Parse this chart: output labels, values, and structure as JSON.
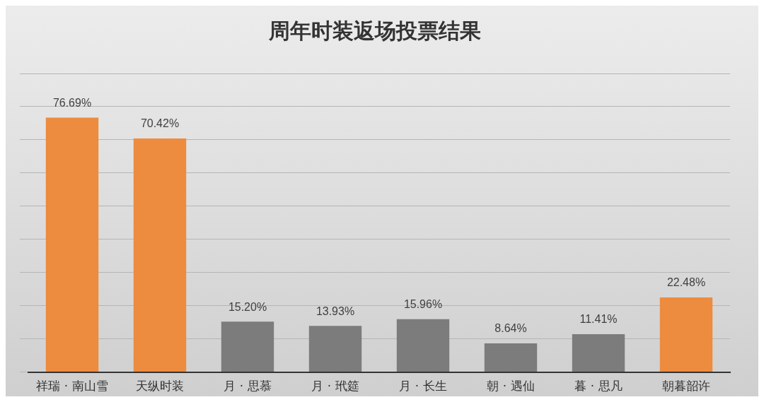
{
  "chart_data": {
    "type": "bar",
    "title": "周年时装返场投票结果",
    "categories": [
      "祥瑞 · 南山雪",
      "天纵时装",
      "月 · 思慕",
      "月 · 玳筵",
      "月 · 长生",
      "朝 · 遇仙",
      "暮 · 思凡",
      "朝暮韶许"
    ],
    "values": [
      76.69,
      70.42,
      15.2,
      13.93,
      15.96,
      8.64,
      11.41,
      22.48
    ],
    "value_labels": [
      "76.69%",
      "70.42%",
      "15.20%",
      "13.93%",
      "15.96%",
      "8.64%",
      "11.41%",
      "22.48%"
    ],
    "colors": [
      "#ed8b3e",
      "#ed8b3e",
      "#7c7c7c",
      "#7c7c7c",
      "#7c7c7c",
      "#7c7c7c",
      "#7c7c7c",
      "#ed8b3e"
    ],
    "ylim": [
      0,
      90
    ],
    "yticks": [
      {
        "value": 0,
        "label": null
      },
      {
        "value": 10,
        "label": null
      },
      {
        "value": 20,
        "label": null
      },
      {
        "value": 30,
        "label": null
      },
      {
        "value": 40,
        "label": null
      },
      {
        "value": 50,
        "label": null
      },
      {
        "value": 60,
        "label": null
      },
      {
        "value": 70,
        "label": null
      },
      {
        "value": 80,
        "label": null
      },
      {
        "value": 90,
        "label": null
      }
    ],
    "grid": "y",
    "tick_labels": "x",
    "legend": false
  }
}
